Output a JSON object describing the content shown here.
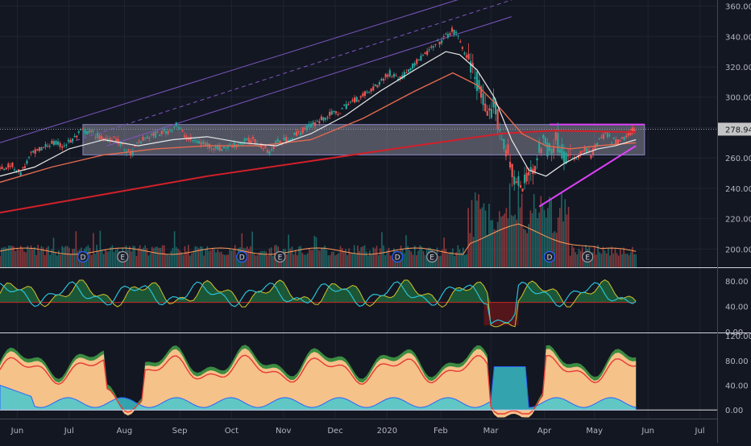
{
  "chart_data": {
    "type": "line",
    "title": "",
    "colors": {
      "background": "#131722",
      "grid": "#1f2432",
      "axis_text": "#b2b5be",
      "candle_up": "#26a69a",
      "candle_down": "#ef5350",
      "sma_fast": "#e9e9e9",
      "sma_mid": "#e46a4f",
      "sma_slow": "#d3202a",
      "channel": "#7e57c2",
      "box": "#b7b5c8",
      "magenta": "#e040fb",
      "last_price_tag": "#c4c4c4"
    },
    "x_axis": {
      "ticks": [
        {
          "label": "Jun",
          "t": 10
        },
        {
          "label": "Jul",
          "t": 40
        },
        {
          "label": "Aug",
          "t": 72
        },
        {
          "label": "Sep",
          "t": 104
        },
        {
          "label": "Oct",
          "t": 134
        },
        {
          "label": "Nov",
          "t": 164
        },
        {
          "label": "Dec",
          "t": 194
        },
        {
          "label": "2020",
          "t": 224
        },
        {
          "label": "Feb",
          "t": 255
        },
        {
          "label": "Mar",
          "t": 284
        },
        {
          "label": "Apr",
          "t": 315
        },
        {
          "label": "May",
          "t": 344
        },
        {
          "label": "Jun",
          "t": 375
        },
        {
          "label": "Jul",
          "t": 405
        }
      ],
      "range": [
        0,
        415
      ]
    },
    "price_pane": {
      "ylim": [
        188,
        364
      ],
      "ticks": [
        360,
        340,
        320,
        300,
        280,
        260,
        240,
        220,
        200
      ],
      "tick_labels": [
        "360.00",
        "340.00",
        "320.00",
        "300.00",
        "280.00",
        "260.00",
        "240.00",
        "220.00",
        "200.00"
      ],
      "last_price": 278.94,
      "last_price_label": "278.94",
      "close_path": [
        [
          0,
          252
        ],
        [
          6,
          256
        ],
        [
          12,
          250
        ],
        [
          18,
          262
        ],
        [
          24,
          266
        ],
        [
          30,
          270
        ],
        [
          36,
          268
        ],
        [
          42,
          272
        ],
        [
          48,
          278
        ],
        [
          54,
          276
        ],
        [
          60,
          272
        ],
        [
          66,
          274
        ],
        [
          72,
          266
        ],
        [
          76,
          262
        ],
        [
          80,
          270
        ],
        [
          86,
          274
        ],
        [
          92,
          276
        ],
        [
          98,
          278
        ],
        [
          102,
          282
        ],
        [
          106,
          276
        ],
        [
          110,
          272
        ],
        [
          116,
          270
        ],
        [
          122,
          268
        ],
        [
          128,
          266
        ],
        [
          134,
          268
        ],
        [
          140,
          270
        ],
        [
          146,
          272
        ],
        [
          152,
          268
        ],
        [
          156,
          264
        ],
        [
          160,
          270
        ],
        [
          166,
          272
        ],
        [
          172,
          276
        ],
        [
          178,
          280
        ],
        [
          184,
          284
        ],
        [
          190,
          288
        ],
        [
          196,
          290
        ],
        [
          202,
          296
        ],
        [
          208,
          300
        ],
        [
          214,
          304
        ],
        [
          220,
          310
        ],
        [
          226,
          316
        ],
        [
          232,
          312
        ],
        [
          236,
          318
        ],
        [
          242,
          324
        ],
        [
          248,
          330
        ],
        [
          254,
          336
        ],
        [
          258,
          340
        ],
        [
          262,
          344
        ],
        [
          266,
          338
        ],
        [
          270,
          326
        ],
        [
          274,
          318
        ],
        [
          278,
          304
        ],
        [
          282,
          284
        ],
        [
          286,
          296
        ],
        [
          290,
          276
        ],
        [
          294,
          262
        ],
        [
          298,
          246
        ],
        [
          302,
          238
        ],
        [
          306,
          250
        ],
        [
          310,
          258
        ],
        [
          314,
          270
        ],
        [
          318,
          266
        ],
        [
          322,
          272
        ],
        [
          326,
          264
        ],
        [
          330,
          258
        ],
        [
          334,
          260
        ],
        [
          338,
          266
        ],
        [
          342,
          262
        ],
        [
          346,
          270
        ],
        [
          350,
          276
        ],
        [
          354,
          272
        ],
        [
          358,
          270
        ],
        [
          362,
          274
        ],
        [
          366,
          278
        ],
        [
          368,
          278.94
        ]
      ],
      "sma20_path": [
        [
          0,
          248
        ],
        [
          20,
          254
        ],
        [
          40,
          266
        ],
        [
          60,
          272
        ],
        [
          80,
          268
        ],
        [
          100,
          272
        ],
        [
          120,
          274
        ],
        [
          140,
          270
        ],
        [
          160,
          268
        ],
        [
          180,
          276
        ],
        [
          200,
          288
        ],
        [
          220,
          304
        ],
        [
          240,
          318
        ],
        [
          258,
          330
        ],
        [
          266,
          328
        ],
        [
          276,
          318
        ],
        [
          286,
          300
        ],
        [
          296,
          272
        ],
        [
          306,
          252
        ],
        [
          316,
          248
        ],
        [
          326,
          256
        ],
        [
          336,
          262
        ],
        [
          346,
          266
        ],
        [
          356,
          268
        ],
        [
          368,
          272
        ]
      ],
      "sma50_path": [
        [
          0,
          244
        ],
        [
          30,
          254
        ],
        [
          60,
          262
        ],
        [
          90,
          266
        ],
        [
          120,
          268
        ],
        [
          150,
          268
        ],
        [
          180,
          272
        ],
        [
          210,
          286
        ],
        [
          240,
          304
        ],
        [
          262,
          316
        ],
        [
          276,
          308
        ],
        [
          290,
          292
        ],
        [
          302,
          276
        ],
        [
          316,
          268
        ],
        [
          330,
          266
        ],
        [
          346,
          268
        ],
        [
          368,
          270
        ]
      ],
      "sma200_path": [
        [
          0,
          224
        ],
        [
          60,
          236
        ],
        [
          120,
          248
        ],
        [
          180,
          258
        ],
        [
          240,
          268
        ],
        [
          290,
          276
        ],
        [
          320,
          278
        ],
        [
          368,
          277
        ]
      ],
      "channel_lines": [
        {
          "style": "solid",
          "from": [
            0,
            270
          ],
          "to": [
            270,
            366
          ]
        },
        {
          "style": "dashed",
          "from": [
            40,
            270
          ],
          "to": [
            296,
            364
          ]
        },
        {
          "style": "solid",
          "from": [
            62,
            268
          ],
          "to": [
            296,
            353
          ]
        }
      ],
      "box": {
        "t0": 48,
        "t1": 373,
        "y0": 262,
        "y1": 282
      },
      "resistance_line": {
        "from": [
          318,
          282
        ],
        "to": [
          373,
          282
        ]
      },
      "support_line": {
        "from": [
          312,
          228
        ],
        "to": [
          368,
          268
        ]
      },
      "volume_ylim": [
        0,
        1
      ],
      "event_markers": [
        {
          "label": "D",
          "t": 48
        },
        {
          "label": "E",
          "t": 71
        },
        {
          "label": "D",
          "t": 140
        },
        {
          "label": "E",
          "t": 162
        },
        {
          "label": "D",
          "t": 230
        },
        {
          "label": "E",
          "t": 250
        },
        {
          "label": "D",
          "t": 318
        },
        {
          "label": "E",
          "t": 340
        }
      ]
    },
    "oscillator_pane_1": {
      "ylim": [
        0,
        100
      ],
      "ticks": [
        80,
        40,
        0
      ],
      "tick_labels": [
        "80.00",
        "40.00",
        "0.00"
      ],
      "mid_level": 46
    },
    "oscillator_pane_2": {
      "ylim": [
        -14,
        124
      ],
      "ticks": [
        120,
        80,
        40,
        0
      ],
      "tick_labels": [
        "120.00",
        "80.00",
        "40.00",
        "0.00"
      ]
    }
  }
}
